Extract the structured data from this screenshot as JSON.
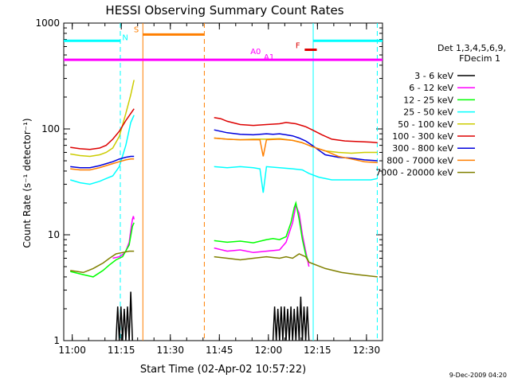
{
  "chart_data": {
    "type": "line",
    "title": "HESSI Observing Summary Count Rates",
    "xlabel": "Start Time (02-Apr-02 10:57:22)",
    "ylabel": "Count Rate (s⁻¹ detector⁻¹)",
    "yscale": "log",
    "ylim": [
      1,
      1000
    ],
    "xlim_minutes": [
      0,
      97.5
    ],
    "x_ticks": [
      {
        "m": 2.6,
        "label": "11:00"
      },
      {
        "m": 17.6,
        "label": "11:15"
      },
      {
        "m": 32.6,
        "label": "11:30"
      },
      {
        "m": 47.6,
        "label": "11:45"
      },
      {
        "m": 62.6,
        "label": "12:00"
      },
      {
        "m": 77.6,
        "label": "12:15"
      },
      {
        "m": 92.6,
        "label": "12:30"
      }
    ],
    "y_ticks": [
      {
        "v": 1,
        "label": "1"
      },
      {
        "v": 10,
        "label": "10"
      },
      {
        "v": 100,
        "label": "100"
      },
      {
        "v": 1000,
        "label": "1000"
      }
    ],
    "legend": {
      "header1": "Det 1,3,4,5,6,9,",
      "header2": "FDecim 1",
      "placement": "right"
    },
    "series": [
      {
        "name": "3 - 6 keV",
        "color": "#000000",
        "segments": [
          [
            [
              16,
              1.0
            ],
            [
              16.5,
              2.1
            ],
            [
              17,
              1.0
            ],
            [
              17.5,
              2.1
            ],
            [
              18,
              1.0
            ],
            [
              18.5,
              2.0
            ],
            [
              19,
              1.0
            ],
            [
              19.5,
              2.1
            ],
            [
              20,
              1.0
            ],
            [
              20.5,
              2.9
            ],
            [
              21,
              1.0
            ]
          ],
          [
            [
              64,
              1.0
            ],
            [
              64.5,
              2.1
            ],
            [
              65,
              1.0
            ],
            [
              65.5,
              2.0
            ],
            [
              66,
              1.0
            ],
            [
              66.5,
              2.1
            ],
            [
              67,
              1.0
            ],
            [
              67.5,
              2.1
            ],
            [
              68,
              1.0
            ],
            [
              68.5,
              2.0
            ],
            [
              69,
              1.0
            ],
            [
              69.5,
              2.1
            ],
            [
              70,
              1.0
            ],
            [
              70.5,
              2.0
            ],
            [
              71,
              1.0
            ],
            [
              71.5,
              2.1
            ],
            [
              72,
              1.0
            ],
            [
              72.5,
              2.6
            ],
            [
              73,
              1.0
            ],
            [
              73.5,
              2.1
            ],
            [
              74,
              1.0
            ],
            [
              74.5,
              2.1
            ],
            [
              75,
              1.0
            ]
          ]
        ]
      },
      {
        "name": "6 - 12 keV",
        "color": "#ff00ff",
        "segments": [
          [
            [
              15,
              6.0
            ],
            [
              17,
              6.2
            ],
            [
              18,
              6.5
            ],
            [
              19,
              7.0
            ],
            [
              20,
              8.5
            ],
            [
              20.5,
              11
            ],
            [
              21,
              14
            ],
            [
              21.3,
              15
            ],
            [
              21.5,
              14
            ]
          ],
          [
            [
              46,
              7.5
            ],
            [
              50,
              7.0
            ],
            [
              54,
              7.2
            ],
            [
              58,
              6.8
            ],
            [
              62,
              7.0
            ],
            [
              66,
              7.2
            ],
            [
              68,
              8.5
            ],
            [
              70,
              13
            ],
            [
              71,
              19
            ],
            [
              72,
              16
            ],
            [
              73,
              10
            ],
            [
              74,
              7.0
            ],
            [
              75,
              5.0
            ]
          ]
        ]
      },
      {
        "name": "12 - 25 keV",
        "color": "#00ff00",
        "segments": [
          [
            [
              2,
              4.5
            ],
            [
              6,
              4.2
            ],
            [
              9,
              4.0
            ],
            [
              12,
              4.6
            ],
            [
              14,
              5.2
            ],
            [
              16,
              5.8
            ],
            [
              18,
              6.2
            ],
            [
              20,
              8.0
            ],
            [
              21,
              12
            ],
            [
              21.5,
              13
            ]
          ],
          [
            [
              46,
              8.8
            ],
            [
              50,
              8.5
            ],
            [
              54,
              8.7
            ],
            [
              58,
              8.4
            ],
            [
              62,
              9.0
            ],
            [
              64,
              9.2
            ],
            [
              66,
              9.0
            ],
            [
              68,
              9.6
            ],
            [
              69.5,
              13
            ],
            [
              70.5,
              18
            ],
            [
              71,
              20
            ],
            [
              72,
              14
            ],
            [
              73,
              9
            ],
            [
              74,
              6.5
            ],
            [
              75,
              5.5
            ]
          ]
        ]
      },
      {
        "name": "25 - 50 keV",
        "color": "#00ffff",
        "segments": [
          [
            [
              2,
              33
            ],
            [
              5,
              31
            ],
            [
              8,
              30
            ],
            [
              11,
              32
            ],
            [
              13,
              34
            ],
            [
              15,
              36
            ],
            [
              17,
              44
            ],
            [
              19,
              70
            ],
            [
              20.5,
              115
            ],
            [
              21.5,
              135
            ]
          ],
          [
            [
              46,
              44
            ],
            [
              50,
              43
            ],
            [
              54,
              44
            ],
            [
              58,
              43
            ],
            [
              60,
              42
            ],
            [
              61,
              25
            ],
            [
              62,
              44
            ],
            [
              66,
              43
            ],
            [
              70,
              42
            ],
            [
              73,
              41
            ],
            [
              75,
              38
            ],
            [
              78,
              35
            ],
            [
              82,
              33
            ],
            [
              86,
              33
            ],
            [
              90,
              33
            ],
            [
              94,
              33
            ],
            [
              96,
              34
            ]
          ]
        ]
      },
      {
        "name": "50 - 100 keV",
        "color": "#cccc00",
        "segments": [
          [
            [
              2,
              58
            ],
            [
              5,
              56
            ],
            [
              8,
              55
            ],
            [
              11,
              57
            ],
            [
              13,
              60
            ],
            [
              15,
              66
            ],
            [
              17,
              85
            ],
            [
              19,
              140
            ],
            [
              20.5,
              210
            ],
            [
              21.5,
              290
            ]
          ],
          [
            [
              46,
              82
            ],
            [
              50,
              80
            ],
            [
              54,
              79
            ],
            [
              58,
              80
            ],
            [
              62,
              80
            ],
            [
              66,
              81
            ],
            [
              70,
              78
            ],
            [
              73,
              74
            ],
            [
              76,
              68
            ],
            [
              80,
              62
            ],
            [
              84,
              60
            ],
            [
              88,
              59
            ],
            [
              92,
              60
            ],
            [
              96,
              60
            ]
          ]
        ]
      },
      {
        "name": "100 - 300 keV",
        "color": "#dd0000",
        "segments": [
          [
            [
              2,
              67
            ],
            [
              5,
              65
            ],
            [
              8,
              64
            ],
            [
              11,
              66
            ],
            [
              13,
              70
            ],
            [
              15,
              80
            ],
            [
              17,
              95
            ],
            [
              19,
              120
            ],
            [
              20.5,
              140
            ],
            [
              21.5,
              155
            ]
          ],
          [
            [
              46,
              128
            ],
            [
              48,
              125
            ],
            [
              50,
              118
            ],
            [
              54,
              110
            ],
            [
              58,
              108
            ],
            [
              62,
              110
            ],
            [
              66,
              112
            ],
            [
              68,
              115
            ],
            [
              71,
              112
            ],
            [
              74,
              105
            ],
            [
              76,
              98
            ],
            [
              79,
              88
            ],
            [
              82,
              80
            ],
            [
              86,
              77
            ],
            [
              90,
              76
            ],
            [
              94,
              75
            ],
            [
              96,
              74
            ]
          ]
        ]
      },
      {
        "name": "300 - 800 keV",
        "color": "#0000dd",
        "segments": [
          [
            [
              2,
              44
            ],
            [
              5,
              43
            ],
            [
              8,
              43
            ],
            [
              11,
              45
            ],
            [
              13,
              47
            ],
            [
              15,
              49
            ],
            [
              17,
              52
            ],
            [
              19,
              54
            ],
            [
              20.5,
              55
            ],
            [
              21.5,
              55
            ]
          ],
          [
            [
              46,
              98
            ],
            [
              50,
              92
            ],
            [
              54,
              89
            ],
            [
              58,
              88
            ],
            [
              62,
              90
            ],
            [
              64,
              89
            ],
            [
              66,
              90
            ],
            [
              68,
              88
            ],
            [
              70,
              86
            ],
            [
              72,
              82
            ],
            [
              74,
              77
            ],
            [
              76,
              70
            ],
            [
              78,
              63
            ],
            [
              80,
              57
            ],
            [
              84,
              54
            ],
            [
              88,
              53
            ],
            [
              92,
              51
            ],
            [
              96,
              50
            ]
          ]
        ]
      },
      {
        "name": "800 - 7000 keV",
        "color": "#ff7f00",
        "segments": [
          [
            [
              2,
              42
            ],
            [
              5,
              41
            ],
            [
              8,
              41
            ],
            [
              11,
              43
            ],
            [
              13,
              45
            ],
            [
              15,
              47
            ],
            [
              17,
              49
            ],
            [
              19,
              51
            ],
            [
              20.5,
              52
            ],
            [
              21.5,
              52
            ]
          ],
          [
            [
              46,
              82
            ],
            [
              50,
              80
            ],
            [
              54,
              79
            ],
            [
              58,
              79
            ],
            [
              60,
              79
            ],
            [
              61,
              55
            ],
            [
              62,
              79
            ],
            [
              66,
              80
            ],
            [
              70,
              78
            ],
            [
              73,
              74
            ],
            [
              76,
              68
            ],
            [
              80,
              62
            ],
            [
              84,
              55
            ],
            [
              88,
              52
            ],
            [
              92,
              49
            ],
            [
              96,
              48
            ]
          ]
        ]
      },
      {
        "name": "7000 - 20000 keV",
        "color": "#808000",
        "segments": [
          [
            [
              2,
              4.6
            ],
            [
              6,
              4.4
            ],
            [
              9,
              4.8
            ],
            [
              12,
              5.4
            ],
            [
              14,
              6.0
            ],
            [
              16,
              6.6
            ],
            [
              18,
              6.8
            ],
            [
              20,
              7.0
            ],
            [
              21.5,
              7.0
            ]
          ],
          [
            [
              46,
              6.2
            ],
            [
              50,
              6.0
            ],
            [
              54,
              5.8
            ],
            [
              58,
              6.0
            ],
            [
              62,
              6.2
            ],
            [
              66,
              6.0
            ],
            [
              68,
              6.2
            ],
            [
              70,
              6.0
            ],
            [
              72,
              6.6
            ],
            [
              74,
              6.2
            ],
            [
              75,
              5.5
            ],
            [
              80,
              4.8
            ],
            [
              85,
              4.4
            ],
            [
              90,
              4.2
            ],
            [
              96,
              4.0
            ]
          ]
        ]
      }
    ],
    "flag_bars": [
      {
        "color": "#ff00ff",
        "x1": 0,
        "x2": 97.5,
        "y": 450
      },
      {
        "color": "#00ffff",
        "x1": 0,
        "x2": 17.2,
        "y": 680
      },
      {
        "color": "#00ffff",
        "x1": 76.3,
        "x2": 97.5,
        "y": 680
      },
      {
        "color": "#ff7f00",
        "x1": 24.2,
        "x2": 42.9,
        "y": 780
      },
      {
        "color": "#dd0000",
        "x1": 73.7,
        "x2": 77.4,
        "y": 560
      }
    ],
    "vlines": [
      {
        "m": 17.3,
        "color": "#00ffff",
        "dashed": true
      },
      {
        "m": 24.2,
        "color": "#ff7f00",
        "dashed": false
      },
      {
        "m": 43.0,
        "color": "#ff7f00",
        "dashed": true
      },
      {
        "m": 76.3,
        "color": "#00ffff",
        "dashed": false
      },
      {
        "m": 95.9,
        "color": "#00ffff",
        "dashed": true
      }
    ],
    "markers": [
      {
        "label": "N",
        "color": "#00ffff",
        "m": 18.8,
        "v": 690
      },
      {
        "label": "S",
        "color": "#ff7f00",
        "m": 22.2,
        "v": 820
      },
      {
        "label": "A0",
        "color": "#ff00ff",
        "m": 58.7,
        "v": 510
      },
      {
        "label": "A1",
        "color": "#ff00ff",
        "m": 62.8,
        "v": 450
      },
      {
        "label": "F",
        "color": "#dd0000",
        "m": 71.6,
        "v": 580
      }
    ],
    "timestamp": "9-Dec-2009 04:20"
  }
}
